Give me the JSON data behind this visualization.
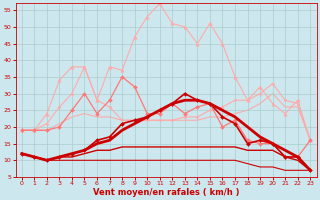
{
  "background_color": "#cce8ee",
  "grid_color": "#aacccc",
  "xlabel": "Vent moyen/en rafales ( km/h )",
  "xlabel_color": "#cc0000",
  "tick_color": "#cc0000",
  "xlim": [
    -0.5,
    23.5
  ],
  "ylim": [
    5,
    57
  ],
  "yticks": [
    5,
    10,
    15,
    20,
    25,
    30,
    35,
    40,
    45,
    50,
    55
  ],
  "xticks": [
    0,
    1,
    2,
    3,
    4,
    5,
    6,
    7,
    8,
    9,
    10,
    11,
    12,
    13,
    14,
    15,
    16,
    17,
    18,
    19,
    20,
    21,
    22,
    23
  ],
  "series": [
    {
      "x": [
        0,
        1,
        2,
        3,
        4,
        5,
        6,
        7,
        8,
        9,
        10,
        11,
        12,
        13,
        14,
        15,
        16,
        17,
        18,
        19,
        20,
        21,
        22,
        23
      ],
      "y": [
        19,
        19,
        19,
        21,
        23,
        24,
        23,
        23,
        22,
        22,
        22,
        22,
        22,
        22,
        22,
        23,
        23,
        24,
        25,
        27,
        30,
        26,
        26,
        16
      ],
      "color": "#ffaaaa",
      "linewidth": 0.8,
      "marker": null,
      "markersize": 0,
      "zorder": 1
    },
    {
      "x": [
        0,
        1,
        2,
        3,
        4,
        5,
        6,
        7,
        8,
        9,
        10,
        11,
        12,
        13,
        14,
        15,
        16,
        17,
        18,
        19,
        20,
        21,
        22,
        23
      ],
      "y": [
        19,
        19,
        21,
        26,
        30,
        38,
        28,
        26,
        22,
        22,
        22,
        22,
        22,
        23,
        23,
        25,
        26,
        28,
        28,
        30,
        33,
        28,
        27,
        16
      ],
      "color": "#ffaaaa",
      "linewidth": 0.8,
      "marker": "D",
      "markersize": 1.5,
      "zorder": 2
    },
    {
      "x": [
        0,
        1,
        2,
        3,
        4,
        5,
        6,
        7,
        8,
        9,
        10,
        11,
        12,
        13,
        14,
        15,
        16,
        17,
        18,
        19,
        20,
        21,
        22,
        23
      ],
      "y": [
        19,
        19,
        24,
        34,
        38,
        38,
        28,
        38,
        37,
        47,
        53,
        57,
        51,
        50,
        45,
        51,
        45,
        35,
        28,
        32,
        27,
        24,
        28,
        16
      ],
      "color": "#ffaaaa",
      "linewidth": 0.8,
      "marker": "^",
      "markersize": 2.5,
      "zorder": 2
    },
    {
      "x": [
        0,
        1,
        2,
        3,
        4,
        5,
        6,
        7,
        8,
        9,
        10,
        11,
        12,
        13,
        14,
        15,
        16,
        17,
        18,
        19,
        20,
        21,
        22,
        23
      ],
      "y": [
        19,
        19,
        19,
        20,
        25,
        30,
        24,
        28,
        35,
        32,
        24,
        24,
        27,
        24,
        26,
        27,
        20,
        22,
        16,
        15,
        15,
        11,
        11,
        16
      ],
      "color": "#ff7777",
      "linewidth": 0.9,
      "marker": "D",
      "markersize": 2.0,
      "zorder": 3
    },
    {
      "x": [
        0,
        1,
        2,
        3,
        4,
        5,
        6,
        7,
        8,
        9,
        10,
        11,
        12,
        13,
        14,
        15,
        16,
        17,
        18,
        19,
        20,
        21,
        22,
        23
      ],
      "y": [
        12,
        11,
        10,
        11,
        12,
        13,
        16,
        17,
        21,
        22,
        23,
        25,
        27,
        30,
        28,
        27,
        23,
        21,
        15,
        16,
        15,
        11,
        11,
        7
      ],
      "color": "#cc0000",
      "linewidth": 1.2,
      "marker": "D",
      "markersize": 2.0,
      "zorder": 6
    },
    {
      "x": [
        0,
        1,
        2,
        3,
        4,
        5,
        6,
        7,
        8,
        9,
        10,
        11,
        12,
        13,
        14,
        15,
        16,
        17,
        18,
        19,
        20,
        21,
        22,
        23
      ],
      "y": [
        12,
        11,
        10,
        11,
        12,
        13,
        15,
        16,
        19,
        21,
        23,
        25,
        27,
        28,
        28,
        27,
        25,
        23,
        20,
        17,
        15,
        13,
        11,
        7
      ],
      "color": "#cc0000",
      "linewidth": 2.0,
      "marker": null,
      "markersize": 0,
      "zorder": 5
    },
    {
      "x": [
        0,
        1,
        2,
        3,
        4,
        5,
        6,
        7,
        8,
        9,
        10,
        11,
        12,
        13,
        14,
        15,
        16,
        17,
        18,
        19,
        20,
        21,
        22,
        23
      ],
      "y": [
        12,
        11,
        10,
        11,
        11,
        12,
        13,
        13,
        14,
        14,
        14,
        14,
        14,
        14,
        14,
        14,
        14,
        14,
        13,
        13,
        13,
        11,
        10,
        7
      ],
      "color": "#cc0000",
      "linewidth": 1.0,
      "marker": null,
      "markersize": 0,
      "zorder": 4
    },
    {
      "x": [
        0,
        1,
        2,
        3,
        4,
        5,
        6,
        7,
        8,
        9,
        10,
        11,
        12,
        13,
        14,
        15,
        16,
        17,
        18,
        19,
        20,
        21,
        22,
        23
      ],
      "y": [
        12,
        11,
        10,
        10,
        10,
        10,
        10,
        10,
        10,
        10,
        10,
        10,
        10,
        10,
        10,
        10,
        10,
        10,
        9,
        8,
        8,
        7,
        7,
        7
      ],
      "color": "#cc0000",
      "linewidth": 0.8,
      "marker": null,
      "markersize": 0,
      "zorder": 3
    }
  ]
}
